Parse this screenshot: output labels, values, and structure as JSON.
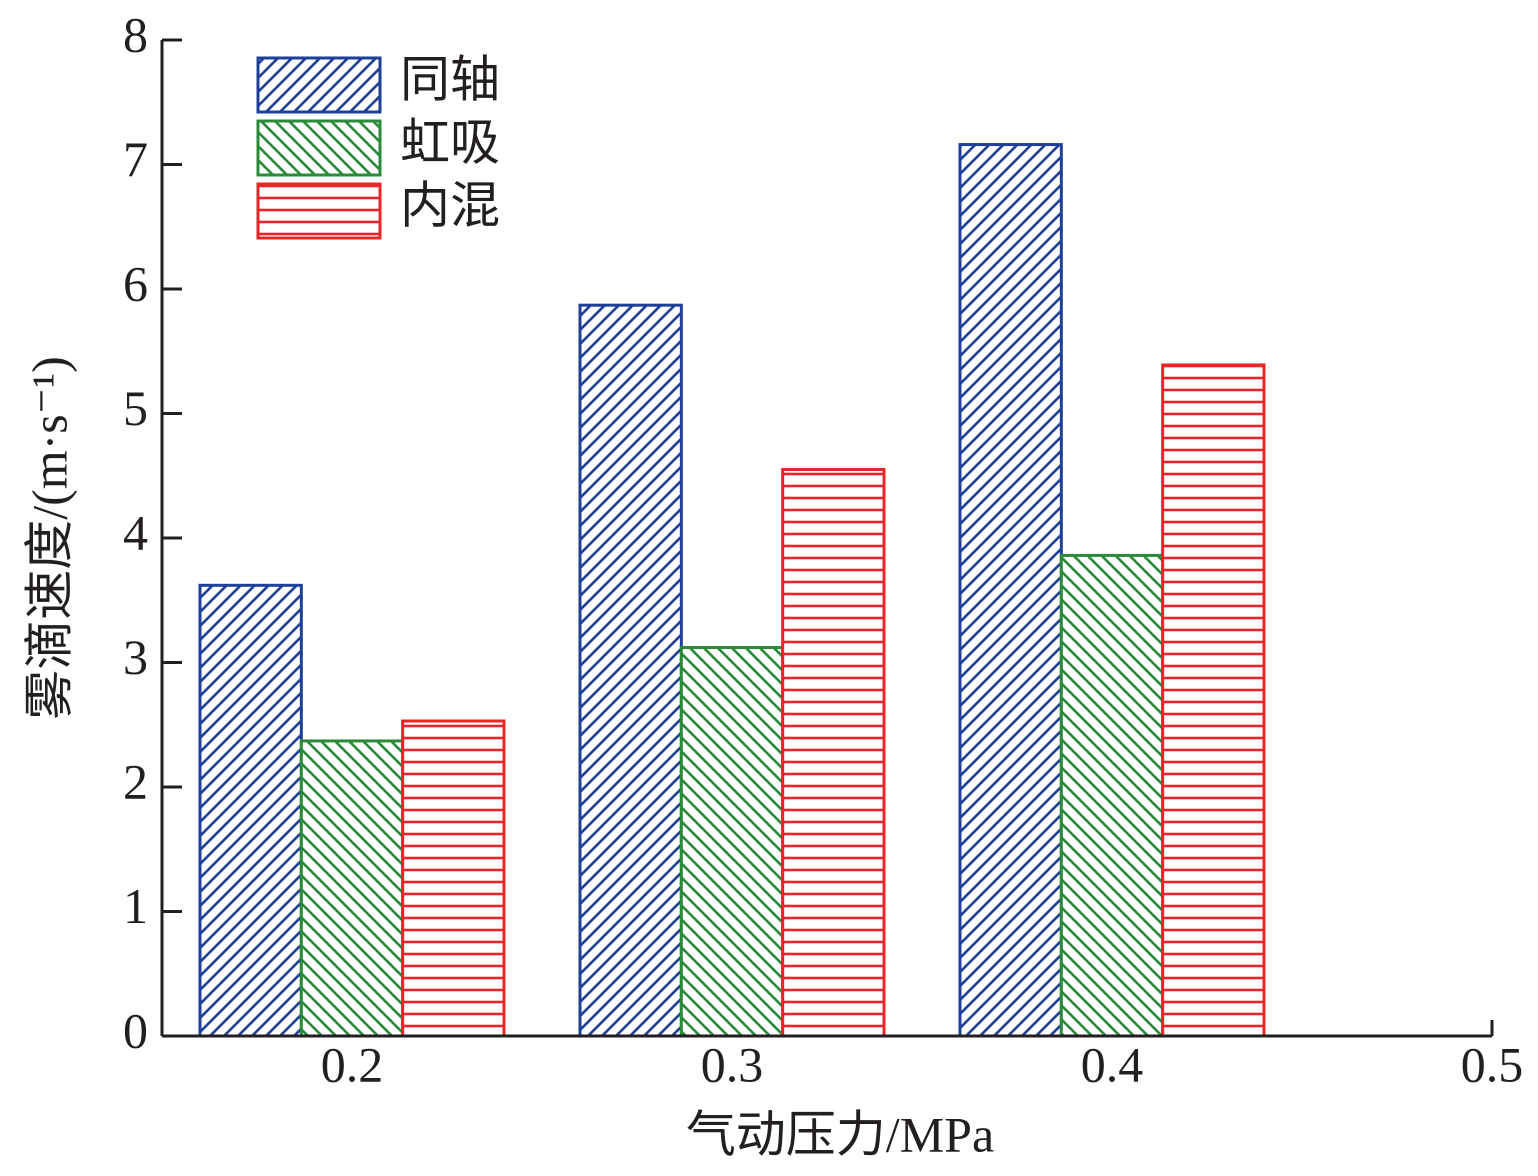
{
  "chart_data": {
    "type": "bar",
    "x_label": "气动压力/MPa",
    "y_label": "雾滴速度/(m·s⁻¹)",
    "x": [
      0.2,
      0.3,
      0.4
    ],
    "series": [
      {
        "name": "同轴",
        "color": "#1f3f99",
        "hatch": "/",
        "values": [
          3.62,
          5.87,
          7.16
        ]
      },
      {
        "name": "虹吸",
        "color": "#2a8a3a",
        "hatch": "\\",
        "values": [
          2.37,
          3.12,
          3.86
        ]
      },
      {
        "name": "内混",
        "color": "#e8262a",
        "hatch": "-",
        "values": [
          2.53,
          4.55,
          5.39
        ]
      }
    ],
    "xlim": [
      0.15,
      0.5
    ],
    "xticks": [
      0.2,
      0.3,
      0.4,
      0.5
    ],
    "ylim": [
      0,
      8
    ],
    "yticks": [
      0,
      1,
      2,
      3,
      4,
      5,
      6,
      7,
      8
    ],
    "legend": "upper left"
  }
}
